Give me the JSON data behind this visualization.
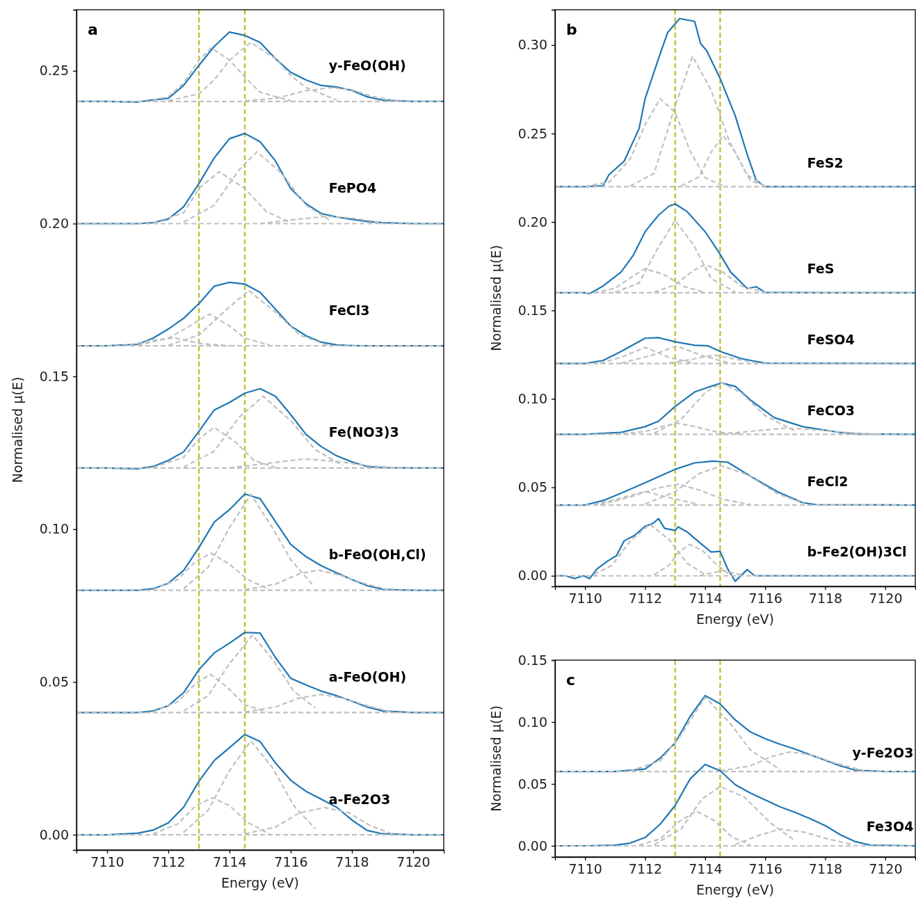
{
  "chart_data": [
    {
      "type": "line",
      "title": "a",
      "xlabel": "Energy (eV)",
      "ylabel": "Normalised μ(E)",
      "xlim": [
        7109,
        7121
      ],
      "ylim": [
        -0.005,
        0.27
      ],
      "xticks": [
        7110,
        7112,
        7114,
        7116,
        7118,
        7120
      ],
      "yticks": [
        {
          "value": 0,
          "label": "0.00"
        },
        {
          "value": 0.05,
          "label": "0.05"
        },
        {
          "value": 0.1,
          "label": "0.10"
        },
        {
          "value": 0.15,
          "label": "0.15"
        },
        {
          "value": 0.2,
          "label": "0.20"
        },
        {
          "value": 0.25,
          "label": "0.25"
        }
      ],
      "ref_lines": [
        {
          "axis": "x",
          "value": 7113,
          "color": "#bcbd22",
          "line_style": "dashed"
        },
        {
          "axis": "x",
          "value": 7114.5,
          "color": "#bcbd22",
          "line_style": "dashed"
        }
      ],
      "x": [
        7109,
        7110,
        7111,
        7111.5,
        7112,
        7112.5,
        7113,
        7113.5,
        7114,
        7114.5,
        7115,
        7115.5,
        7116,
        7116.5,
        7117,
        7117.5,
        7118,
        7118.5,
        7119,
        7120,
        7121
      ],
      "series": [
        {
          "name": "y-FeO(OH)",
          "color": "#1f77b4",
          "values": [
            0.24,
            0.24,
            0.2398,
            0.2405,
            0.241,
            0.2452,
            0.2518,
            0.258,
            0.2627,
            0.2616,
            0.2593,
            0.254,
            0.2495,
            0.247,
            0.2452,
            0.2447,
            0.2436,
            0.2415,
            0.2404,
            0.24,
            0.24
          ]
        },
        {
          "color": "#c0c0c0",
          "line_style": "dashed",
          "x": [
            7111.5,
            7112,
            7112.5,
            7113,
            7113.4,
            7114,
            7114.5,
            7115,
            7116
          ],
          "values": [
            0.2405,
            0.2415,
            0.246,
            0.2535,
            0.2575,
            0.2535,
            0.248,
            0.243,
            0.2402
          ]
        },
        {
          "color": "#c0c0c0",
          "line_style": "dashed",
          "x": [
            7112,
            7113,
            7113.5,
            7114,
            7114.7,
            7115.5,
            7116,
            7116.5,
            7117.5
          ],
          "values": [
            0.2402,
            0.2425,
            0.247,
            0.2535,
            0.2593,
            0.254,
            0.2485,
            0.2445,
            0.2405
          ]
        },
        {
          "color": "#c0c0c0",
          "line_style": "dashed",
          "x": [
            7114.5,
            7115.5,
            7116.5,
            7117.3,
            7118,
            7118.7,
            7119.5
          ],
          "values": [
            0.2402,
            0.241,
            0.2435,
            0.2445,
            0.2438,
            0.2415,
            0.2402
          ]
        },
        {
          "color": "#c0c0c0",
          "line_style": "dashed",
          "x": [
            7109,
            7121
          ],
          "values": [
            0.24,
            0.24
          ]
        },
        {
          "name": "FePO4",
          "color": "#1f77b4",
          "values": [
            0.2,
            0.2,
            0.2,
            0.2003,
            0.2015,
            0.2055,
            0.2131,
            0.2215,
            0.2278,
            0.2295,
            0.2268,
            0.2205,
            0.2115,
            0.2065,
            0.2033,
            0.2022,
            0.2014,
            0.2007,
            0.2003,
            0.2,
            0.2
          ]
        },
        {
          "color": "#c0c0c0",
          "line_style": "dashed",
          "x": [
            7111.5,
            7112.5,
            7113,
            7113.66,
            7114.5,
            7115.2,
            7116
          ],
          "values": [
            0.2003,
            0.2035,
            0.2115,
            0.217,
            0.2115,
            0.204,
            0.2003
          ]
        },
        {
          "color": "#c0c0c0",
          "line_style": "dashed",
          "x": [
            7112.5,
            7113.5,
            7114.3,
            7114.9,
            7115.7,
            7116.5,
            7117.3
          ],
          "values": [
            0.2005,
            0.206,
            0.2175,
            0.2235,
            0.2165,
            0.206,
            0.201
          ]
        },
        {
          "color": "#c0c0c0",
          "line_style": "dashed",
          "x": [
            7115,
            7116.3,
            7117.2,
            7118,
            7119
          ],
          "values": [
            0.2,
            0.2015,
            0.2024,
            0.2018,
            0.2003
          ]
        },
        {
          "color": "#c0c0c0",
          "line_style": "dashed",
          "x": [
            7109,
            7121
          ],
          "values": [
            0.2,
            0.2
          ]
        },
        {
          "name": "FeCl3",
          "color": "#1f77b4",
          "values": [
            0.16,
            0.16,
            0.1605,
            0.1625,
            0.1655,
            0.169,
            0.1738,
            0.1795,
            0.1808,
            0.1802,
            0.1775,
            0.172,
            0.1665,
            0.1633,
            0.1612,
            0.1603,
            0.1601,
            0.16,
            0.16,
            0.16,
            0.16
          ]
        },
        {
          "color": "#c0c0c0",
          "line_style": "dashed",
          "x": [
            7111,
            7112,
            7112.7,
            7113.34,
            7114,
            7114.5,
            7115.3
          ],
          "values": [
            0.1602,
            0.1625,
            0.1665,
            0.1704,
            0.1665,
            0.1625,
            0.1603
          ]
        },
        {
          "color": "#c0c0c0",
          "line_style": "dashed",
          "x": [
            7112,
            7113,
            7113.8,
            7114.63,
            7115.5,
            7116.3,
            7117.2
          ],
          "values": [
            0.1602,
            0.1635,
            0.171,
            0.1781,
            0.171,
            0.1635,
            0.1602
          ]
        },
        {
          "color": "#c0c0c0",
          "line_style": "dashed",
          "x": [
            7110.5,
            7111.5,
            7112.2,
            7113,
            7114
          ],
          "values": [
            0.16,
            0.1618,
            0.1626,
            0.1608,
            0.16
          ]
        },
        {
          "color": "#c0c0c0",
          "line_style": "dashed",
          "x": [
            7109,
            7121
          ],
          "values": [
            0.16,
            0.16
          ]
        },
        {
          "name": "Fe(NO3)3",
          "color": "#1f77b4",
          "values": [
            0.12,
            0.12,
            0.1198,
            0.1205,
            0.1225,
            0.1253,
            0.132,
            0.139,
            0.1415,
            0.1445,
            0.146,
            0.1435,
            0.1375,
            0.131,
            0.127,
            0.124,
            0.122,
            0.1205,
            0.1201,
            0.12,
            0.12
          ]
        },
        {
          "color": "#c0c0c0",
          "line_style": "dashed",
          "x": [
            7111.5,
            7112.5,
            7113,
            7113.5,
            7114.2,
            7114.8,
            7115.5
          ],
          "values": [
            0.1202,
            0.1235,
            0.1295,
            0.1333,
            0.1285,
            0.1225,
            0.1202
          ]
        },
        {
          "color": "#c0c0c0",
          "line_style": "dashed",
          "x": [
            7112.5,
            7113.5,
            7114.3,
            7115.1,
            7116,
            7116.8,
            7117.7
          ],
          "values": [
            0.1203,
            0.1255,
            0.1365,
            0.1435,
            0.1355,
            0.126,
            0.1208
          ]
        },
        {
          "color": "#c0c0c0",
          "line_style": "dashed",
          "x": [
            7114,
            7115.2,
            7116.45,
            7117.5,
            7118.5,
            7119.5
          ],
          "values": [
            0.1201,
            0.1215,
            0.123,
            0.1222,
            0.1208,
            0.1201
          ]
        },
        {
          "color": "#c0c0c0",
          "line_style": "dashed",
          "x": [
            7109,
            7121
          ],
          "values": [
            0.12,
            0.12
          ]
        },
        {
          "name": "b-FeO(OH,Cl)",
          "color": "#1f77b4",
          "values": [
            0.08,
            0.08,
            0.08,
            0.0805,
            0.0823,
            0.0865,
            0.094,
            0.1023,
            0.1064,
            0.1115,
            0.11,
            0.1025,
            0.095,
            0.091,
            0.088,
            0.0857,
            0.0835,
            0.0815,
            0.0803,
            0.08,
            0.08
          ]
        },
        {
          "color": "#c0c0c0",
          "line_style": "dashed",
          "x": [
            7111.5,
            7112.3,
            7112.9,
            7113.4,
            7114,
            7114.6,
            7115.3
          ],
          "values": [
            0.0802,
            0.0835,
            0.0895,
            0.0921,
            0.0885,
            0.0835,
            0.0803
          ]
        },
        {
          "color": "#c0c0c0",
          "line_style": "dashed",
          "x": [
            7112.5,
            7113.3,
            7114,
            7114.7,
            7115.4,
            7116,
            7116.7
          ],
          "values": [
            0.0805,
            0.0875,
            0.1005,
            0.1114,
            0.1005,
            0.09,
            0.082
          ]
        },
        {
          "color": "#c0c0c0",
          "line_style": "dashed",
          "x": [
            7114.5,
            7115.5,
            7116.3,
            7116.9,
            7117.6,
            7118.3,
            7119.2
          ],
          "values": [
            0.0802,
            0.082,
            0.0855,
            0.0866,
            0.085,
            0.0825,
            0.0802
          ]
        },
        {
          "color": "#c0c0c0",
          "line_style": "dashed",
          "x": [
            7109,
            7121
          ],
          "values": [
            0.08,
            0.08
          ]
        },
        {
          "name": "a-FeO(OH)",
          "color": "#1f77b4",
          "values": [
            0.04,
            0.04,
            0.04,
            0.0405,
            0.0422,
            0.0465,
            0.054,
            0.0595,
            0.0627,
            0.0662,
            0.066,
            0.058,
            0.0512,
            0.049,
            0.047,
            0.0455,
            0.0437,
            0.0418,
            0.0405,
            0.04,
            0.04
          ]
        },
        {
          "color": "#c0c0c0",
          "line_style": "dashed",
          "x": [
            7111.5,
            7112.3,
            7112.9,
            7113.37,
            7113.9,
            7114.5,
            7115.2
          ],
          "values": [
            0.0402,
            0.0435,
            0.0495,
            0.0525,
            0.0485,
            0.0425,
            0.0403
          ]
        },
        {
          "color": "#c0c0c0",
          "line_style": "dashed",
          "x": [
            7112.5,
            7113.3,
            7114,
            7114.75,
            7115.4,
            7116.1,
            7116.8
          ],
          "values": [
            0.0405,
            0.0455,
            0.056,
            0.0653,
            0.0575,
            0.047,
            0.0415
          ]
        },
        {
          "color": "#c0c0c0",
          "line_style": "dashed",
          "x": [
            7114.5,
            7115.5,
            7116.3,
            7117,
            7117.8,
            7118.5,
            7119.3
          ],
          "values": [
            0.0402,
            0.0418,
            0.0448,
            0.0459,
            0.0445,
            0.0422,
            0.0402
          ]
        },
        {
          "color": "#c0c0c0",
          "line_style": "dashed",
          "x": [
            7109,
            7121
          ],
          "values": [
            0.04,
            0.04
          ]
        },
        {
          "name": "a-Fe2O3",
          "color": "#1f77b4",
          "values": [
            0,
            0,
            0.0005,
            0.0015,
            0.0039,
            0.009,
            0.0175,
            0.0243,
            0.0285,
            0.0328,
            0.0305,
            0.0235,
            0.0178,
            0.0142,
            0.0116,
            0.009,
            0.0048,
            0.0014,
            0.0003,
            0,
            0
          ]
        },
        {
          "color": "#c0c0c0",
          "line_style": "dashed",
          "x": [
            7111.5,
            7112.3,
            7112.9,
            7113.45,
            7114,
            7114.6,
            7115.3
          ],
          "values": [
            0.0003,
            0.0035,
            0.0095,
            0.0121,
            0.0095,
            0.004,
            0.0003
          ]
        },
        {
          "color": "#c0c0c0",
          "line_style": "dashed",
          "x": [
            7112.5,
            7113.3,
            7114,
            7114.7,
            7115.4,
            7116.1,
            7116.8
          ],
          "values": [
            0.0008,
            0.008,
            0.021,
            0.0307,
            0.022,
            0.0095,
            0.002
          ]
        },
        {
          "color": "#c0c0c0",
          "line_style": "dashed",
          "x": [
            7114.5,
            7115.5,
            7116.3,
            7117.1,
            7117.9,
            7118.6,
            7119.3
          ],
          "values": [
            0.0003,
            0.0025,
            0.0072,
            0.0089,
            0.0072,
            0.003,
            0.0003
          ]
        },
        {
          "color": "#c0c0c0",
          "line_style": "dashed",
          "x": [
            7109,
            7121
          ],
          "values": [
            0,
            0
          ]
        }
      ]
    },
    {
      "type": "line",
      "title": "b",
      "xlabel": "Energy (eV)",
      "ylabel": "Normalised μ(E)",
      "xlim": [
        7109,
        7121
      ],
      "ylim": [
        -0.006,
        0.32
      ],
      "xticks": [
        7110,
        7112,
        7114,
        7116,
        7118,
        7120
      ],
      "yticks": [
        {
          "value": 0,
          "label": "0.00"
        },
        {
          "value": 0.05,
          "label": "0.05"
        },
        {
          "value": 0.1,
          "label": "0.10"
        },
        {
          "value": 0.15,
          "label": "0.15"
        },
        {
          "value": 0.2,
          "label": "0.20"
        },
        {
          "value": 0.25,
          "label": "0.25"
        },
        {
          "value": 0.3,
          "label": "0.30"
        }
      ],
      "ref_lines": [
        {
          "axis": "x",
          "value": 7113,
          "color": "#bcbd22",
          "line_style": "dashed"
        },
        {
          "axis": "x",
          "value": 7114.5,
          "color": "#bcbd22",
          "line_style": "dashed"
        }
      ],
      "series": [
        {
          "name": "FeS2",
          "color": "#1f77b4",
          "x": [
            7109,
            7110,
            7110.6,
            7110.8,
            7111.3,
            7111.8,
            7112,
            7112.45,
            7112.75,
            7113.15,
            7113.65,
            7113.85,
            7114.05,
            7114.5,
            7115,
            7115.4,
            7115.7,
            7116,
            7118,
            7121
          ],
          "values": [
            0.22,
            0.22,
            0.2205,
            0.2268,
            0.2343,
            0.2528,
            0.2697,
            0.2925,
            0.3071,
            0.315,
            0.3134,
            0.3008,
            0.2969,
            0.2811,
            0.2602,
            0.2382,
            0.2236,
            0.22,
            0.22,
            0.22
          ]
        },
        {
          "color": "#c0c0c0",
          "line_style": "dashed",
          "x": [
            7110,
            7110.8,
            7111.5,
            7112,
            7112.5,
            7113,
            7113.5,
            7114,
            7114.6
          ],
          "values": [
            0.2202,
            0.2225,
            0.2355,
            0.255,
            0.2697,
            0.262,
            0.24,
            0.225,
            0.2205
          ]
        },
        {
          "color": "#c0c0c0",
          "line_style": "dashed",
          "x": [
            7111.5,
            7112.3,
            7113,
            7113.58,
            7114.2,
            7114.8,
            7115.5,
            7116
          ],
          "values": [
            0.2203,
            0.2275,
            0.2655,
            0.2937,
            0.2745,
            0.246,
            0.2235,
            0.2203
          ]
        },
        {
          "color": "#c0c0c0",
          "line_style": "dashed",
          "x": [
            7113.2,
            7113.8,
            7114.2,
            7114.6,
            7115,
            7115.4,
            7116
          ],
          "values": [
            0.2203,
            0.2255,
            0.2395,
            0.2488,
            0.2395,
            0.2265,
            0.2202
          ]
        },
        {
          "color": "#c0c0c0",
          "line_style": "dashed",
          "x": [
            7109,
            7121
          ],
          "values": [
            0.22,
            0.22
          ]
        },
        {
          "name": "FeS",
          "color": "#1f77b4",
          "x": [
            7109,
            7110,
            7110.15,
            7110.6,
            7111.2,
            7111.6,
            7112,
            7112.45,
            7112.8,
            7113,
            7113.4,
            7114,
            7114.45,
            7114.85,
            7115.4,
            7115.7,
            7116,
            7118,
            7121
          ],
          "values": [
            0.16,
            0.16,
            0.1595,
            0.1638,
            0.1717,
            0.181,
            0.1945,
            0.2039,
            0.209,
            0.2102,
            0.2059,
            0.1945,
            0.1831,
            0.1717,
            0.1624,
            0.1634,
            0.1602,
            0.16,
            0.16
          ]
        },
        {
          "color": "#c0c0c0",
          "line_style": "dashed",
          "x": [
            7111,
            7111.8,
            7112.4,
            7113,
            7113.6,
            7114.2,
            7115
          ],
          "values": [
            0.1602,
            0.1655,
            0.1845,
            0.2008,
            0.1875,
            0.168,
            0.1605
          ]
        },
        {
          "color": "#c0c0c0",
          "line_style": "dashed",
          "x": [
            7110.3,
            7111,
            7111.6,
            7112,
            7112.6,
            7113.3,
            7114
          ],
          "values": [
            0.16,
            0.1625,
            0.1695,
            0.1736,
            0.1705,
            0.1635,
            0.1603
          ]
        },
        {
          "color": "#c0c0c0",
          "line_style": "dashed",
          "x": [
            7112.3,
            7113,
            7113.6,
            7114,
            7114.6,
            7115.2,
            7116
          ],
          "values": [
            0.1603,
            0.1645,
            0.1725,
            0.176,
            0.1715,
            0.1638,
            0.1602
          ]
        },
        {
          "color": "#c0c0c0",
          "line_style": "dashed",
          "x": [
            7109,
            7121
          ],
          "values": [
            0.16,
            0.16
          ]
        },
        {
          "name": "FeSO4",
          "color": "#1f77b4",
          "x": [
            7109,
            7110,
            7110.6,
            7111.2,
            7112,
            7112.45,
            7113,
            7113.65,
            7114.1,
            7114.5,
            7115.2,
            7116,
            7121
          ],
          "values": [
            0.12,
            0.12,
            0.1217,
            0.1268,
            0.1343,
            0.1346,
            0.1323,
            0.1303,
            0.13,
            0.1268,
            0.1228,
            0.1202,
            0.12
          ]
        },
        {
          "color": "#c0c0c0",
          "line_style": "dashed",
          "x": [
            7110.5,
            7111.2,
            7112,
            7112.8,
            7113.6
          ],
          "values": [
            0.1202,
            0.1235,
            0.1291,
            0.1235,
            0.1203
          ]
        },
        {
          "color": "#c0c0c0",
          "line_style": "dashed",
          "x": [
            7111.2,
            7112.2,
            7113.05,
            7113.9,
            7114.8
          ],
          "values": [
            0.1202,
            0.1245,
            0.1299,
            0.1245,
            0.1203
          ]
        },
        {
          "color": "#c0c0c0",
          "line_style": "dashed",
          "x": [
            7112.8,
            7113.6,
            7114.3,
            7115,
            7115.8
          ],
          "values": [
            0.1202,
            0.1225,
            0.1248,
            0.1225,
            0.1202
          ]
        },
        {
          "color": "#c0c0c0",
          "line_style": "dashed",
          "x": [
            7109,
            7121
          ],
          "values": [
            0.12,
            0.12
          ]
        },
        {
          "name": "FeCO3",
          "color": "#1f77b4",
          "x": [
            7109,
            7110,
            7111.2,
            7112,
            7112.45,
            7113,
            7113.65,
            7114.2,
            7114.55,
            7115,
            7115.55,
            7116.3,
            7117.25,
            7118.45,
            7119.1,
            7121
          ],
          "values": [
            0.08,
            0.08,
            0.0811,
            0.0843,
            0.0874,
            0.0957,
            0.1039,
            0.1071,
            0.109,
            0.1071,
            0.0988,
            0.0894,
            0.0843,
            0.0811,
            0.0801,
            0.08
          ]
        },
        {
          "color": "#c0c0c0",
          "line_style": "dashed",
          "x": [
            7111,
            7112,
            7112.6,
            7113.1,
            7113.7,
            7114.4,
            7115.2
          ],
          "values": [
            0.0801,
            0.0815,
            0.0845,
            0.0862,
            0.0842,
            0.0812,
            0.0801
          ]
        },
        {
          "color": "#c0c0c0",
          "line_style": "dashed",
          "x": [
            7112.3,
            7113.2,
            7114,
            7114.55,
            7115.2,
            7116,
            7117
          ],
          "values": [
            0.0805,
            0.0885,
            0.1035,
            0.109,
            0.1035,
            0.0905,
            0.0818
          ]
        },
        {
          "color": "#c0c0c0",
          "line_style": "dashed",
          "x": [
            7114.5,
            7115.6,
            7116.7,
            7117.7,
            7118.7,
            7119.7
          ],
          "values": [
            0.0801,
            0.0818,
            0.0835,
            0.0825,
            0.081,
            0.0801
          ]
        },
        {
          "color": "#c0c0c0",
          "line_style": "dashed",
          "x": [
            7109,
            7121
          ],
          "values": [
            0.08,
            0.08
          ]
        },
        {
          "name": "FeCl2",
          "color": "#1f77b4",
          "x": [
            7109,
            7110,
            7110.6,
            7111.2,
            7112,
            7113,
            7113.65,
            7114.25,
            7114.75,
            7115.55,
            7116.4,
            7117.25,
            7117.7,
            7121
          ],
          "values": [
            0.04,
            0.04,
            0.0425,
            0.0467,
            0.0526,
            0.0602,
            0.0638,
            0.0648,
            0.0642,
            0.0559,
            0.0476,
            0.0413,
            0.0402,
            0.04
          ]
        },
        {
          "color": "#c0c0c0",
          "line_style": "dashed",
          "x": [
            7110.5,
            7111.5,
            7112.4,
            7113.1,
            7113.8,
            7114.6,
            7115.5
          ],
          "values": [
            0.0402,
            0.0445,
            0.0495,
            0.0518,
            0.0485,
            0.0432,
            0.0403
          ]
        },
        {
          "color": "#c0c0c0",
          "line_style": "dashed",
          "x": [
            7112,
            7113,
            7113.8,
            7114.55,
            7115.4,
            7116.4,
            7117.3
          ],
          "values": [
            0.0405,
            0.0475,
            0.0578,
            0.0622,
            0.0572,
            0.0465,
            0.0408
          ]
        },
        {
          "color": "#c0c0c0",
          "line_style": "dashed",
          "x": [
            7110.3,
            7111.1,
            7112,
            7112.9,
            7113.8
          ],
          "values": [
            0.0402,
            0.0435,
            0.0476,
            0.0438,
            0.0403
          ]
        },
        {
          "color": "#c0c0c0",
          "line_style": "dashed",
          "x": [
            7109,
            7121
          ],
          "values": [
            0.04,
            0.04
          ]
        },
        {
          "name": "b-Fe2(OH)3Cl",
          "color": "#1f77b4",
          "x": [
            7109,
            7109.35,
            7109.65,
            7109.95,
            7110.15,
            7110.4,
            7110.75,
            7111.05,
            7111.3,
            7111.65,
            7112,
            7112.25,
            7112.45,
            7112.65,
            7113,
            7113.1,
            7113.4,
            7113.75,
            7114.2,
            7114.5,
            7114.75,
            7115,
            7115.4,
            7115.65,
            7121
          ],
          "values": [
            0,
            0,
            -0.0016,
            0,
            -0.0016,
            0.0039,
            0.0083,
            0.0114,
            0.0197,
            0.0228,
            0.028,
            0.0295,
            0.0323,
            0.0268,
            0.0256,
            0.0276,
            0.0248,
            0.0197,
            0.0134,
            0.0138,
            0.0039,
            -0.0031,
            0.0035,
            0,
            0
          ]
        },
        {
          "color": "#c0c0c0",
          "line_style": "dashed",
          "x": [
            7110.3,
            7110.9,
            7111.5,
            7112.15,
            7112.8,
            7113.4,
            7114
          ],
          "values": [
            0.0008,
            0.006,
            0.0195,
            0.0291,
            0.0205,
            0.007,
            0.0008
          ]
        },
        {
          "color": "#c0c0c0",
          "line_style": "dashed",
          "x": [
            7112.3,
            7112.8,
            7113.1,
            7113.47,
            7113.9,
            7114.3,
            7114.8
          ],
          "values": [
            0.0005,
            0.006,
            0.013,
            0.0177,
            0.0145,
            0.0075,
            0.0008
          ]
        },
        {
          "color": "#c0c0c0",
          "line_style": "dashed",
          "x": [
            7113.8,
            7114.6,
            7115.3
          ],
          "values": [
            0,
            0.003,
            0
          ]
        },
        {
          "color": "#c0c0c0",
          "line_style": "dashed",
          "x": [
            7109,
            7121
          ],
          "values": [
            0,
            0
          ]
        }
      ]
    },
    {
      "type": "line",
      "title": "c",
      "xlabel": "Energy (eV)",
      "ylabel": "Normalised μ(E)",
      "xlim": [
        7109,
        7121
      ],
      "ylim": [
        -0.009,
        0.15
      ],
      "xticks": [
        7110,
        7112,
        7114,
        7116,
        7118,
        7120
      ],
      "yticks": [
        {
          "value": 0,
          "label": "0.00"
        },
        {
          "value": 0.05,
          "label": "0.05"
        },
        {
          "value": 0.1,
          "label": "0.10"
        },
        {
          "value": 0.15,
          "label": "0.15"
        }
      ],
      "ref_lines": [
        {
          "axis": "x",
          "value": 7113,
          "color": "#bcbd22",
          "line_style": "dashed"
        },
        {
          "axis": "x",
          "value": 7114.5,
          "color": "#bcbd22",
          "line_style": "dashed"
        }
      ],
      "series": [
        {
          "name": "y-Fe2O3",
          "color": "#1f77b4",
          "x": [
            7109,
            7110,
            7111,
            7112,
            7112.5,
            7113,
            7113.5,
            7114,
            7114.5,
            7115,
            7115.5,
            7116,
            7116.5,
            7117,
            7117.5,
            7118,
            7118.5,
            7119,
            7120,
            7121
          ],
          "values": [
            0.06,
            0.06,
            0.06,
            0.062,
            0.0708,
            0.0831,
            0.1045,
            0.1213,
            0.1146,
            0.1017,
            0.0921,
            0.0865,
            0.082,
            0.0781,
            0.0736,
            0.0691,
            0.0646,
            0.0611,
            0.06,
            0.06
          ]
        },
        {
          "color": "#c0c0c0",
          "line_style": "dashed",
          "x": [
            7111.5,
            7112.5,
            7113.2,
            7114,
            7114.8,
            7115.5,
            7116.5
          ],
          "values": [
            0.0605,
            0.0685,
            0.0895,
            0.12,
            0.1,
            0.0775,
            0.0615
          ]
        },
        {
          "color": "#c0c0c0",
          "line_style": "dashed",
          "x": [
            7114.5,
            7115.5,
            7116.2,
            7116.8,
            7117.5,
            7118.3,
            7119.3
          ],
          "values": [
            0.0605,
            0.0645,
            0.072,
            0.0758,
            0.0738,
            0.067,
            0.0608
          ]
        },
        {
          "color": "#c0c0c0",
          "line_style": "dashed",
          "x": [
            7109,
            7121
          ],
          "values": [
            0.06,
            0.06
          ]
        },
        {
          "name": "Fe3O4",
          "color": "#1f77b4",
          "x": [
            7109,
            7110,
            7111,
            7111.5,
            7112,
            7112.5,
            7113,
            7113.5,
            7114,
            7114.5,
            7115,
            7115.5,
            7116,
            7116.5,
            7117,
            7117.5,
            7118,
            7118.5,
            7119,
            7119.5,
            7121
          ],
          "values": [
            0,
            0,
            0.0005,
            0.0022,
            0.0067,
            0.0174,
            0.0326,
            0.054,
            0.0657,
            0.0607,
            0.0494,
            0.0427,
            0.0371,
            0.0315,
            0.027,
            0.0219,
            0.0163,
            0.009,
            0.0034,
            0.0005,
            0
          ]
        },
        {
          "color": "#c0c0c0",
          "line_style": "dashed",
          "x": [
            7111.8,
            7112.5,
            7113.1,
            7113.7,
            7114.3,
            7114.9,
            7115.5
          ],
          "values": [
            0.0005,
            0.0055,
            0.019,
            0.0281,
            0.0205,
            0.007,
            0.0008
          ]
        },
        {
          "color": "#c0c0c0",
          "line_style": "dashed",
          "x": [
            7112.3,
            7113.2,
            7113.9,
            7114.5,
            7115.3,
            7116.2,
            7117
          ],
          "values": [
            0.001,
            0.0135,
            0.038,
            0.0478,
            0.0395,
            0.018,
            0.004
          ]
        },
        {
          "color": "#c0c0c0",
          "line_style": "dashed",
          "x": [
            7115,
            7115.8,
            7116.5,
            7117.3,
            7118.1,
            7118.9
          ],
          "values": [
            0.001,
            0.0085,
            0.0135,
            0.011,
            0.0055,
            0.001
          ]
        },
        {
          "color": "#c0c0c0",
          "line_style": "dashed",
          "x": [
            7109,
            7121
          ],
          "values": [
            0,
            0
          ]
        }
      ]
    }
  ]
}
